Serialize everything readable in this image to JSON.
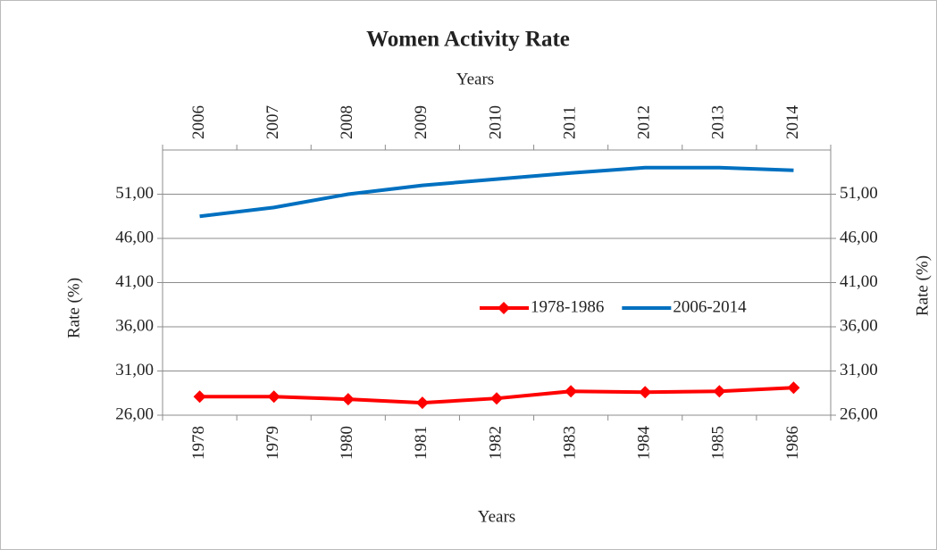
{
  "chart_data": {
    "type": "line",
    "title": "Women Activity Rate",
    "x_label": "Years",
    "x2_label": "Years",
    "y_label": "Rate (%)",
    "y2_label": "Rate (%)",
    "categories": [
      "1978",
      "1979",
      "1980",
      "1981",
      "1982",
      "1983",
      "1984",
      "1985",
      "1986"
    ],
    "x2_categories": [
      "2006",
      "2007",
      "2008",
      "2009",
      "2010",
      "2011",
      "2012",
      "2013",
      "2014"
    ],
    "series": [
      {
        "name": "1978-1986",
        "color": "#ff0000",
        "marker": "diamond",
        "values": [
          28.1,
          28.1,
          27.8,
          27.4,
          27.9,
          28.7,
          28.6,
          28.7,
          29.1
        ]
      },
      {
        "name": "2006-2014",
        "color": "#0070c0",
        "xaxis": "x2",
        "values": [
          48.5,
          49.5,
          51.0,
          52.0,
          52.7,
          53.4,
          54.0,
          54.0,
          53.7
        ]
      }
    ],
    "ylim": [
      26,
      56
    ],
    "yticks": [
      {
        "value": 26,
        "label": "26,00"
      },
      {
        "value": 31,
        "label": "31,00"
      },
      {
        "value": 36,
        "label": "36,00"
      },
      {
        "value": 41,
        "label": "41,00"
      },
      {
        "value": 46,
        "label": "46,00"
      },
      {
        "value": 51,
        "label": "51,00"
      }
    ],
    "y2lim": [
      26,
      56
    ],
    "y2ticks": [
      {
        "value": 26,
        "label": "26,00"
      },
      {
        "value": 31,
        "label": "31,00"
      },
      {
        "value": 36,
        "label": "36,00"
      },
      {
        "value": 41,
        "label": "41,00"
      },
      {
        "value": 46,
        "label": "46,00"
      },
      {
        "value": 51,
        "label": "51,00"
      }
    ],
    "grid": true
  }
}
